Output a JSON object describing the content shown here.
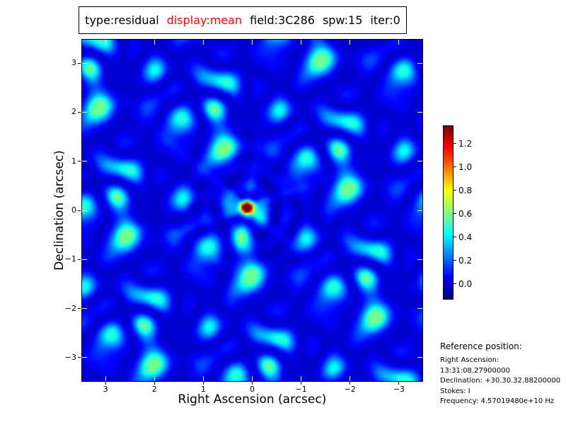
{
  "header": {
    "segments": [
      {
        "text": "type:residual",
        "color": "#000000"
      },
      {
        "text": "display:mean",
        "color": "#ff0000"
      },
      {
        "text": "field:3C286",
        "color": "#000000"
      },
      {
        "text": "spw:15",
        "color": "#000000"
      },
      {
        "text": "iter:0",
        "color": "#000000"
      }
    ]
  },
  "chart_data": {
    "type": "heatmap",
    "title": "type:residual display:mean field:3C286 spw:15 iter:0",
    "xlabel": "Right Ascension (arcsec)",
    "ylabel": "Declination (arcsec)",
    "x_ticks": [
      3,
      2,
      1,
      0,
      -1,
      -2,
      -3
    ],
    "y_ticks": [
      3,
      2,
      1,
      0,
      -1,
      -2,
      -3
    ],
    "xlim": [
      3.48,
      -3.48
    ],
    "ylim": [
      -3.48,
      3.48
    ],
    "grid": false,
    "colormap": "jet",
    "colorbar": {
      "position": "right",
      "vmin": -0.13,
      "vmax": 1.35,
      "ticks": [
        1.2,
        1.0,
        0.8,
        0.6,
        0.4,
        0.2,
        0.0
      ]
    },
    "peak_source": {
      "ra_arcsec": 0.11,
      "dec_arcsec": 0.06,
      "value": 1.35
    },
    "background_rms_level": 0.05,
    "pattern": "interferometric residual map: deep-blue field crossed by a faint hexagonal web of sidelobe ripples with scattered cyan knots and a single bright red point source at the field center",
    "render": {
      "seed": 11,
      "grating_period_arcsec": 2.32,
      "lattice_rotation_deg": 12,
      "speckle_gain": 0.105,
      "speckle_floor": -0.02,
      "speckle_cap": 0.58,
      "ring_period_arcsec": 0.42,
      "ring_amp": 0.09,
      "arm_amp": 0.13,
      "arm_angles_deg": [
        20,
        80,
        140
      ],
      "source_sigma_arcsec": 0.072,
      "source_amp": 1.36
    }
  },
  "reference": {
    "heading": "Reference position:",
    "lines": [
      "Right Ascension: 13:31:08.27900000",
      "Declination: +30.30.32.88200000",
      "Stokes: I",
      "Frequency: 4.57019480e+10 Hz"
    ]
  }
}
